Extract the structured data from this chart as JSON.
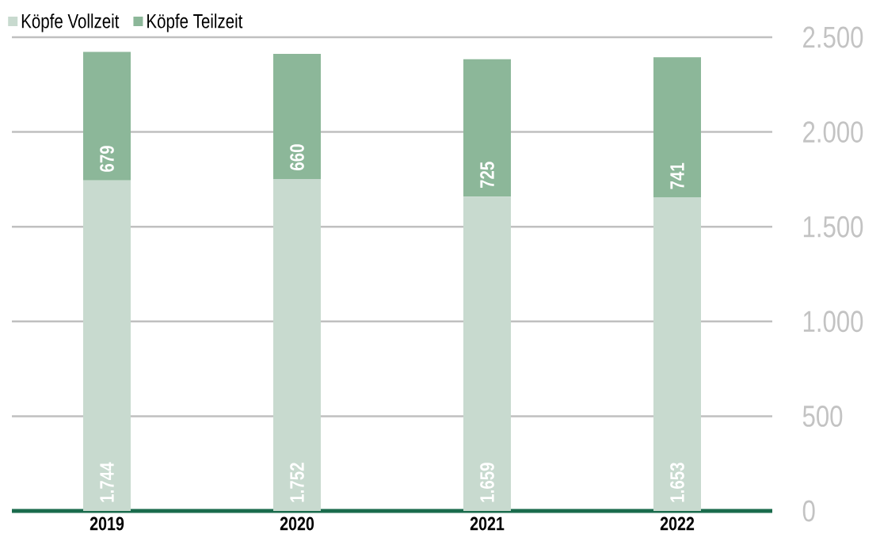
{
  "chart_data": {
    "type": "bar",
    "stacked": true,
    "categories": [
      "2019",
      "2020",
      "2021",
      "2022"
    ],
    "series": [
      {
        "name": "Köpfe Vollzeit",
        "color": "#c8dacf",
        "values": [
          1744,
          1752,
          1659,
          1653
        ],
        "value_labels": [
          "1.744",
          "1.752",
          "1.659",
          "1.653"
        ]
      },
      {
        "name": "Köpfe Teilzeit",
        "color": "#8cb799",
        "values": [
          679,
          660,
          725,
          741
        ],
        "value_labels": [
          "679",
          "660",
          "725",
          "741"
        ]
      }
    ],
    "ylim": [
      0,
      2500
    ],
    "yticks": [
      0,
      500,
      {
        "value": 1000,
        "label": "1.000"
      },
      {
        "value": 1500,
        "label": "1.500"
      },
      {
        "value": 2000,
        "label": "2.000"
      },
      {
        "value": 2500,
        "label": "2.500"
      }
    ],
    "grid": "y",
    "legend": "top left"
  }
}
